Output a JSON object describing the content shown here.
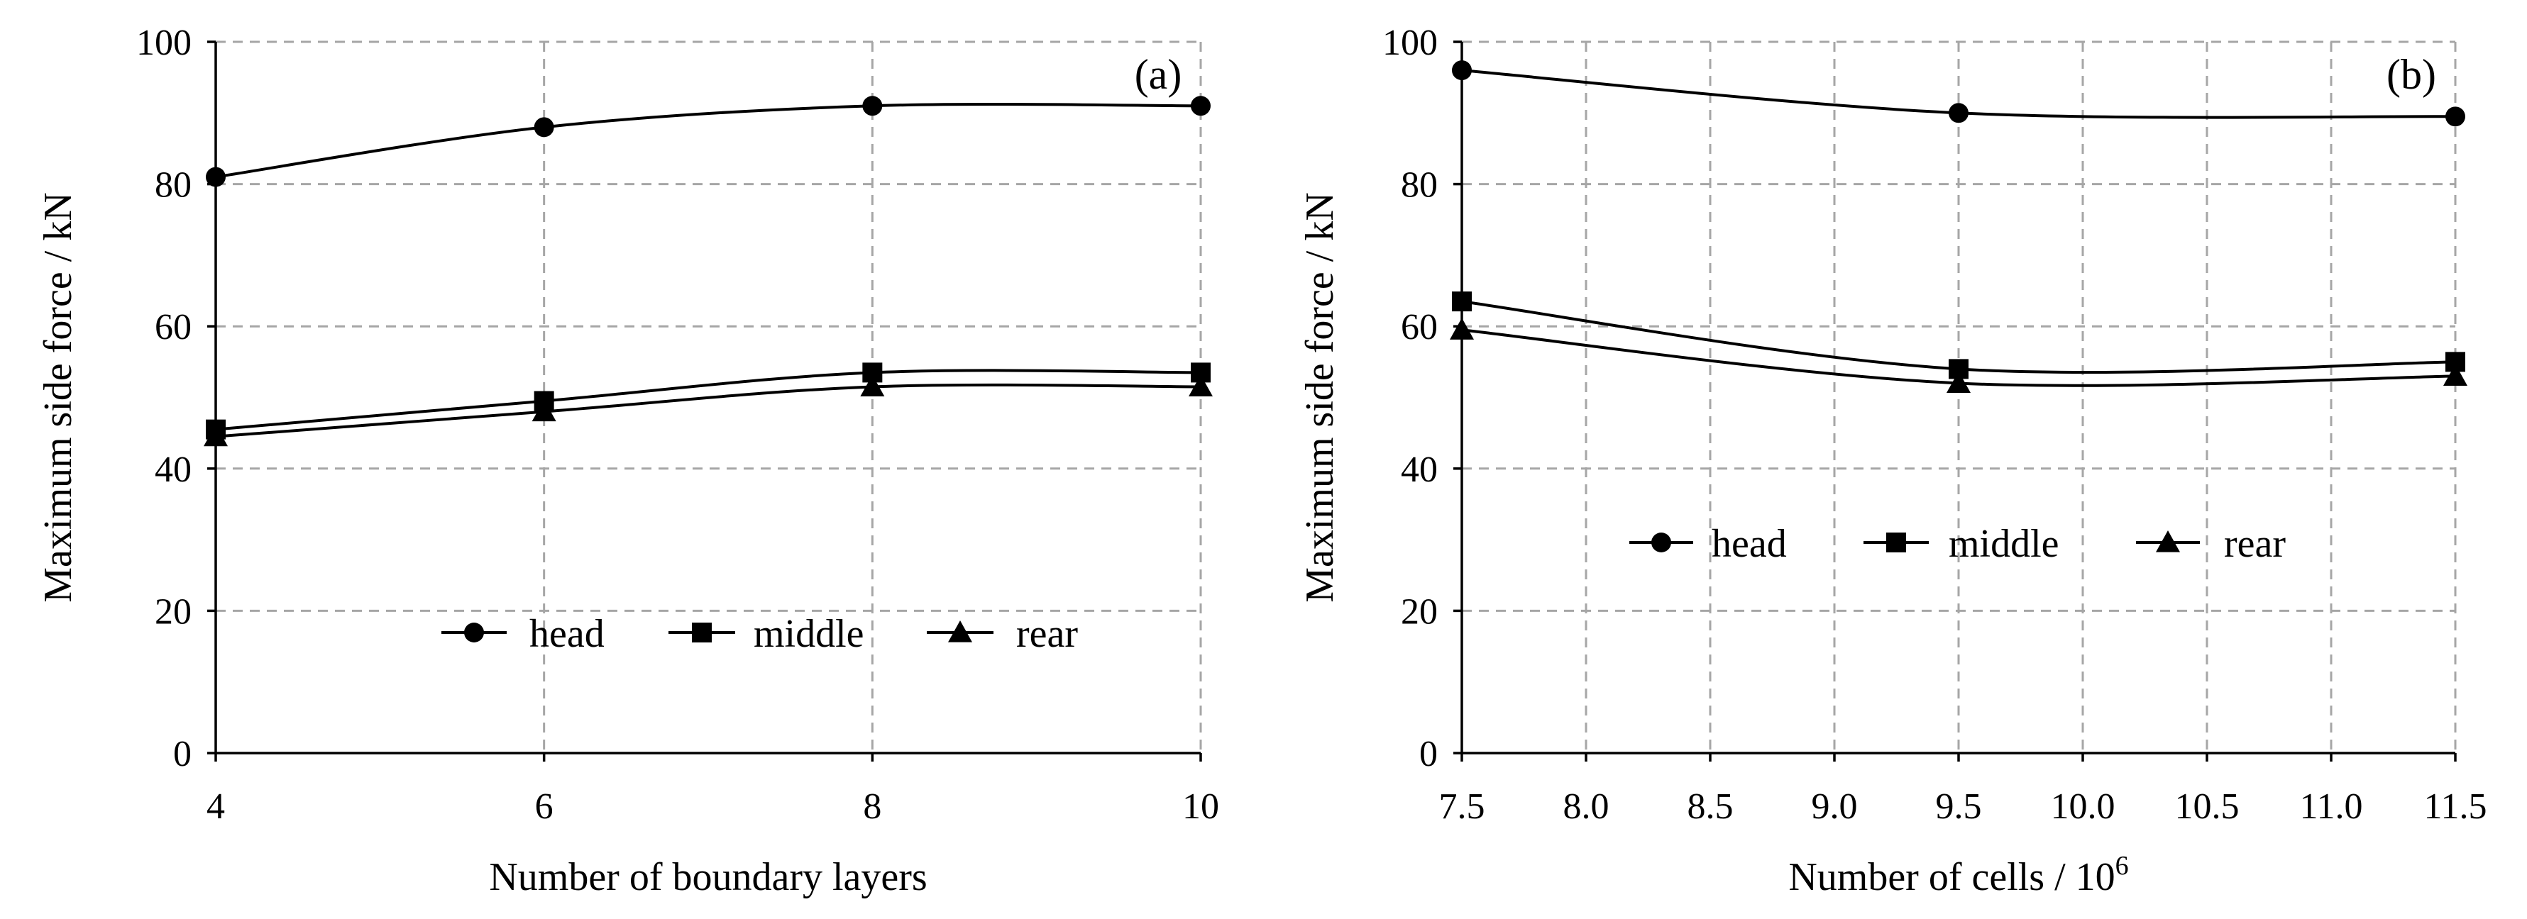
{
  "chart_data": [
    {
      "type": "line",
      "panel_label": "(a)",
      "xlabel": "Number of boundary layers",
      "ylabel": "Maximum side force / kN",
      "xlim": [
        4,
        10
      ],
      "ylim": [
        0,
        100
      ],
      "xticks": [
        4,
        6,
        8,
        10
      ],
      "xtick_labels": [
        "4",
        "6",
        "8",
        "10"
      ],
      "yticks": [
        0,
        20,
        40,
        60,
        80,
        100
      ],
      "ytick_labels": [
        "0",
        "20",
        "40",
        "60",
        "80",
        "100"
      ],
      "grid": true,
      "legend_position": "bottom-right",
      "x": [
        4,
        6,
        8,
        10
      ],
      "series": [
        {
          "name": "head",
          "marker": "circle",
          "values": [
            81,
            88,
            91,
            91
          ]
        },
        {
          "name": "middle",
          "marker": "square",
          "values": [
            45.5,
            49.5,
            53.5,
            53.5
          ]
        },
        {
          "name": "rear",
          "marker": "triangle",
          "values": [
            44.5,
            48,
            51.5,
            51.5
          ]
        }
      ]
    },
    {
      "type": "line",
      "panel_label": "(b)",
      "xlabel": "Number of cells  / 10",
      "xlabel_sup": "6",
      "ylabel": "Maximum side force / kN",
      "xlim": [
        7.5,
        11.5
      ],
      "ylim": [
        0,
        100
      ],
      "xticks": [
        7.5,
        8.0,
        8.5,
        9.0,
        9.5,
        10.0,
        10.5,
        11.0,
        11.5
      ],
      "xtick_labels": [
        "7.5",
        "8.0",
        "8.5",
        "9.0",
        "9.5",
        "10.0",
        "10.5",
        "11.0",
        "11.5"
      ],
      "yticks": [
        0,
        20,
        40,
        60,
        80,
        100
      ],
      "ytick_labels": [
        "0",
        "20",
        "40",
        "60",
        "80",
        "100"
      ],
      "grid": true,
      "legend_position": "center",
      "x": [
        7.5,
        9.5,
        11.5
      ],
      "series": [
        {
          "name": "head",
          "marker": "circle",
          "values": [
            96,
            90,
            89.5
          ]
        },
        {
          "name": "middle",
          "marker": "square",
          "values": [
            63.5,
            54,
            55
          ]
        },
        {
          "name": "rear",
          "marker": "triangle",
          "values": [
            59.5,
            52,
            53
          ]
        }
      ]
    }
  ]
}
